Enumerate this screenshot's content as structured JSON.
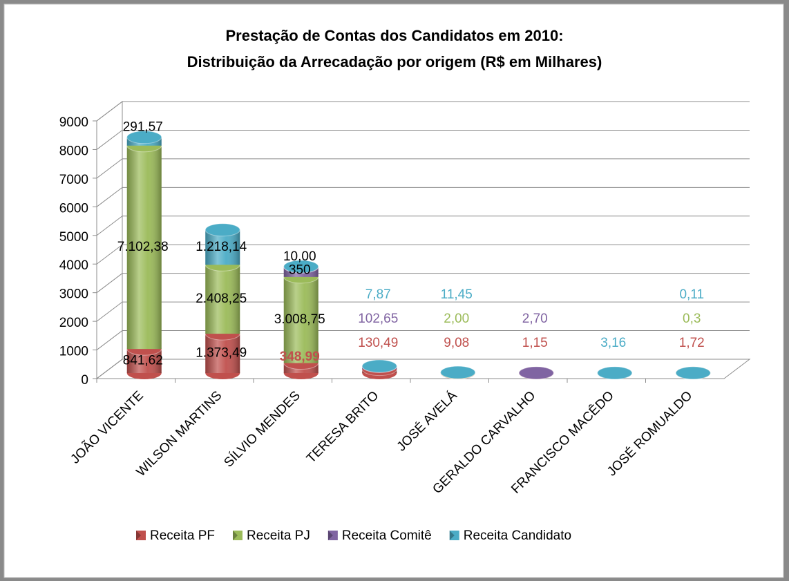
{
  "chart_data": {
    "type": "bar3d_stacked",
    "title": [
      "Prestação de Contas dos Candidatos em 2010:",
      "Distribuição da Arrecadação por origem (R$ em Milhares)"
    ],
    "categories": [
      "JOÃO VICENTE",
      "WILSON MARTINS",
      "SÍLVIO MENDES",
      "TERESA BRITO",
      "JOSÉ AVELÁ",
      "GERALDO CARVALHO",
      "FRANCISCO MACÊDO",
      "JOSÉ ROMUALDO"
    ],
    "series": [
      {
        "name": "Receita PF",
        "color": "#c0504d",
        "values": [
          841.62,
          1373.49,
          348.99,
          130.49,
          9.08,
          1.15,
          null,
          1.72
        ],
        "value_labels": [
          "841,62",
          "1.373,49",
          "348,99",
          "130,49",
          "9,08",
          "1,15",
          null,
          "1,72"
        ]
      },
      {
        "name": "Receita PJ",
        "color": "#9bbb59",
        "values": [
          7102.38,
          2408.25,
          3008.75,
          null,
          2.0,
          null,
          null,
          0.3
        ],
        "value_labels": [
          "7.102,38",
          "2.408,25",
          "3.008,75",
          null,
          "2,00",
          null,
          null,
          "0,3"
        ]
      },
      {
        "name": "Receita Comitê",
        "color": "#8064a2",
        "values": [
          null,
          null,
          350,
          102.65,
          null,
          2.7,
          null,
          null
        ],
        "value_labels": [
          null,
          null,
          "350",
          "102,65",
          null,
          "2,70",
          null,
          null
        ]
      },
      {
        "name": "Receita Candidato",
        "color": "#4bacc6",
        "values": [
          291.57,
          1218.14,
          10.0,
          7.87,
          11.45,
          null,
          3.16,
          0.11
        ],
        "value_labels": [
          "291,57",
          "1.218,14",
          "10,00",
          "7,87",
          "11,45",
          null,
          "3,16",
          "0,11"
        ]
      }
    ],
    "ylim": [
      0,
      9000
    ],
    "yticks": [
      0,
      1000,
      2000,
      3000,
      4000,
      5000,
      6000,
      7000,
      8000,
      9000
    ],
    "grid": true,
    "legend": "bottom"
  }
}
